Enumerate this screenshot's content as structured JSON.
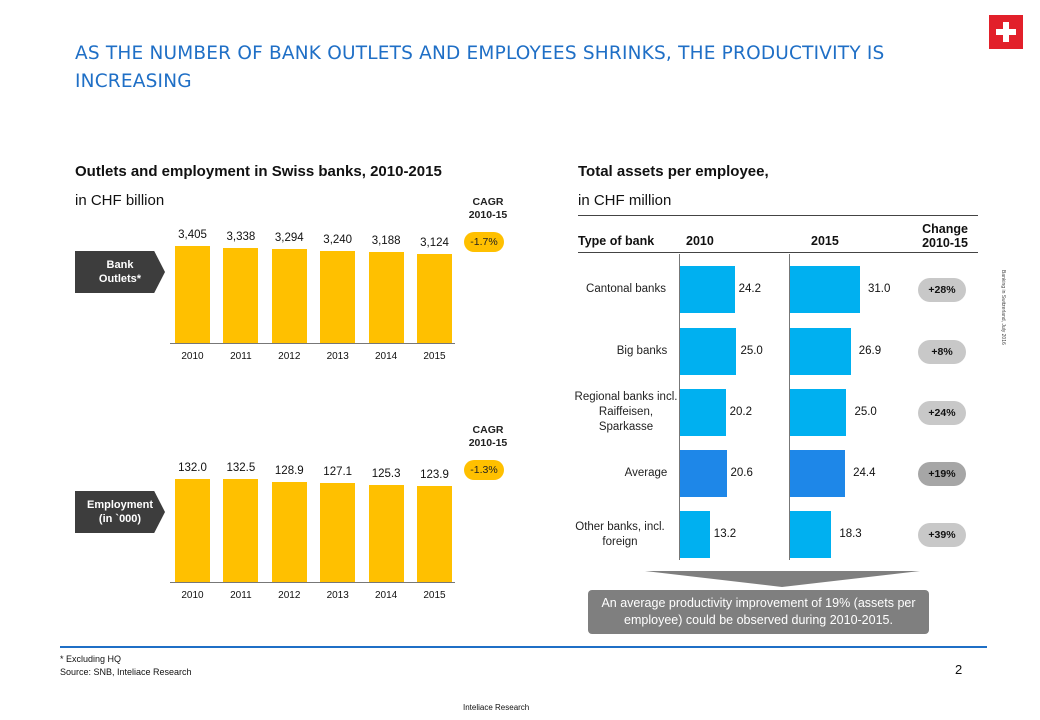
{
  "title": "AS THE NUMBER OF BANK OUTLETS AND EMPLOYEES SHRINKS, THE PRODUCTIVITY IS INCREASING",
  "left_section": {
    "title": "Outlets and employment in Swiss banks, 2010-2015",
    "subtitle": "in CHF billion"
  },
  "right_section": {
    "title": "Total assets per employee,",
    "subtitle": "in CHF million"
  },
  "outlets": {
    "label": "Bank Outlets*",
    "cagr_header": "CAGR 2010-15",
    "cagr": "-1.7%"
  },
  "employment": {
    "label": "Employment (in `000)",
    "cagr_header": "CAGR 2010-15",
    "cagr": "-1.3%"
  },
  "table": {
    "col_type": "Type of bank",
    "col_2010": "2010",
    "col_2015": "2015",
    "col_change": "Change 2010-15"
  },
  "callout": "An average productivity improvement of 19% (assets per employee) could be observed during 2010-2015.",
  "footnote": "* Excluding HQ",
  "source": "Source: SNB, Inteliace Research",
  "page_number": "2",
  "footer_brand": "Inteliace Research",
  "side_text": "Banking in Switzerland, July 2016",
  "colors": {
    "yellow": "#ffc000",
    "blue": "#00b0f0",
    "blue_dark": "#1e87e8",
    "title_blue": "#1f6fc6",
    "pill_gray": "#c8c8c8"
  },
  "chart_data": [
    {
      "type": "bar",
      "title": "Bank Outlets*",
      "categories": [
        "2010",
        "2011",
        "2012",
        "2013",
        "2014",
        "2015"
      ],
      "values": [
        3405,
        3338,
        3294,
        3240,
        3188,
        3124
      ],
      "value_labels": [
        "3,405",
        "3,338",
        "3,294",
        "3,240",
        "3,188",
        "3,124"
      ],
      "ylim": [
        0,
        3405
      ]
    },
    {
      "type": "bar",
      "title": "Employment (in `000)",
      "categories": [
        "2010",
        "2011",
        "2012",
        "2013",
        "2014",
        "2015"
      ],
      "values": [
        132.0,
        132.5,
        128.9,
        127.1,
        125.3,
        123.9
      ],
      "value_labels": [
        "132.0",
        "132.5",
        "128.9",
        "127.1",
        "125.3",
        "123.9"
      ],
      "ylim": [
        0,
        132.5
      ]
    },
    {
      "type": "bar",
      "orientation": "horizontal",
      "title": "Total assets per employee",
      "categories": [
        "Cantonal banks",
        "Big banks",
        "Regional banks incl. Raiffeisen, Sparkasse",
        "Average",
        "Other banks, incl. foreign"
      ],
      "series": [
        {
          "name": "2010",
          "values": [
            24.2,
            25.0,
            20.2,
            20.6,
            13.2
          ],
          "labels": [
            "24.2",
            "25.0",
            "20.2",
            "20.6",
            "13.2"
          ]
        },
        {
          "name": "2015",
          "values": [
            31.0,
            26.9,
            25.0,
            24.4,
            18.3
          ],
          "labels": [
            "31.0",
            "26.9",
            "25.0",
            "24.4",
            "18.3"
          ]
        }
      ],
      "change": [
        "+28%",
        "+8%",
        "+24%",
        "+19%",
        "+39%"
      ],
      "highlight_category": "Average"
    }
  ]
}
